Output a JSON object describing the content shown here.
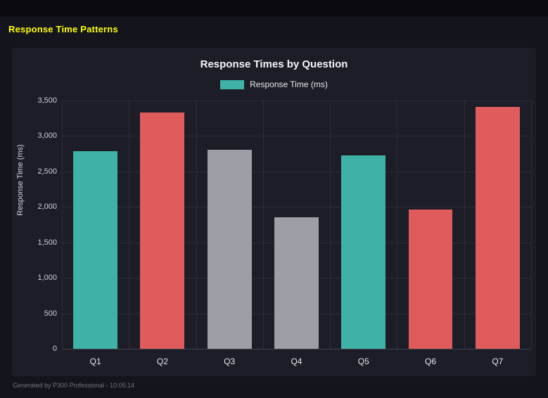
{
  "header": {
    "title": "Response Time Patterns"
  },
  "footer": {
    "text": "Generated by P300 Professional - 10:05:14"
  },
  "colors": {
    "accent_yellow": "#ffff00",
    "teal": "#3fb2a7",
    "red": "#e05c5c",
    "gray": "#9e9ea6",
    "panel_bg": "#1d1d28",
    "page_bg": "#14141d"
  },
  "chart_data": {
    "type": "bar",
    "title": "Response Times by Question",
    "categories": [
      "Q1",
      "Q2",
      "Q3",
      "Q4",
      "Q5",
      "Q6",
      "Q7"
    ],
    "values": [
      2790,
      3330,
      2810,
      1850,
      2730,
      1960,
      3410
    ],
    "bar_colors": [
      "#3fb2a7",
      "#e05c5c",
      "#9e9ea6",
      "#9e9ea6",
      "#3fb2a7",
      "#e05c5c",
      "#e05c5c"
    ],
    "legend": [
      {
        "label": "Response Time (ms)",
        "color": "#3fb2a7"
      }
    ],
    "legend_position": "top",
    "xlabel": "",
    "ylabel": "Response Time (ms)",
    "ylim": [
      0,
      3500
    ],
    "ytick_step": 500,
    "ytick_labels": [
      "0",
      "500",
      "1,000",
      "1,500",
      "2,000",
      "2,500",
      "3,000",
      "3,500"
    ],
    "grid": true
  }
}
